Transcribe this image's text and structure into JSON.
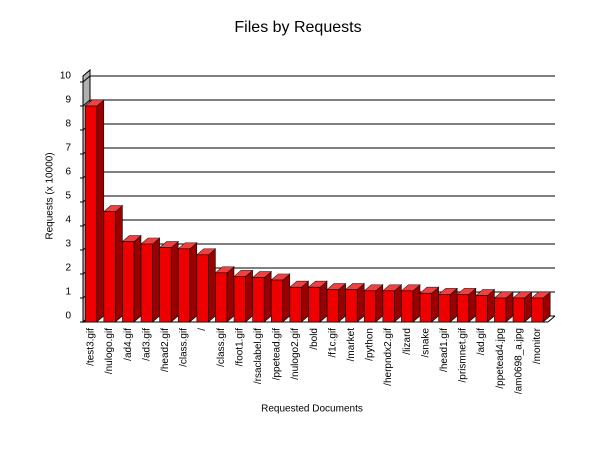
{
  "chart_data": {
    "type": "bar",
    "title": "Files by Requests",
    "x_label": "Requested Documents",
    "y_label": "Requests (x 10000)",
    "categories": [
      "/test3.gif",
      "/nulogo.gif",
      "/ad4.gif",
      "/ad3.gif",
      "/head2.gif",
      "/class.gif",
      "/",
      "/class.gif",
      "/foot1.gif",
      "/rsaclabel.gif",
      "/ppetead.gif",
      "/nulogo2.gif",
      "/bold",
      "/f1c.gif",
      "/market",
      "/python",
      "/herpndx2.gif",
      "/lizard",
      "/snake",
      "/head1.gif",
      "/prismnet.gif",
      "/ad.gif",
      "/ppetead4.jpg",
      "/am0698_a.jpg",
      "/monitor"
    ],
    "values": [
      9.0,
      4.6,
      3.35,
      3.25,
      3.1,
      3.05,
      2.8,
      2.05,
      1.9,
      1.85,
      1.75,
      1.45,
      1.45,
      1.35,
      1.35,
      1.3,
      1.3,
      1.3,
      1.2,
      1.15,
      1.15,
      1.1,
      1.0,
      1.0,
      1.0
    ],
    "color": "#ee0000",
    "ylim": [
      0,
      10
    ],
    "yticks": [
      0,
      1,
      2,
      3,
      4,
      5,
      6,
      7,
      8,
      9,
      10
    ],
    "grid": true
  }
}
